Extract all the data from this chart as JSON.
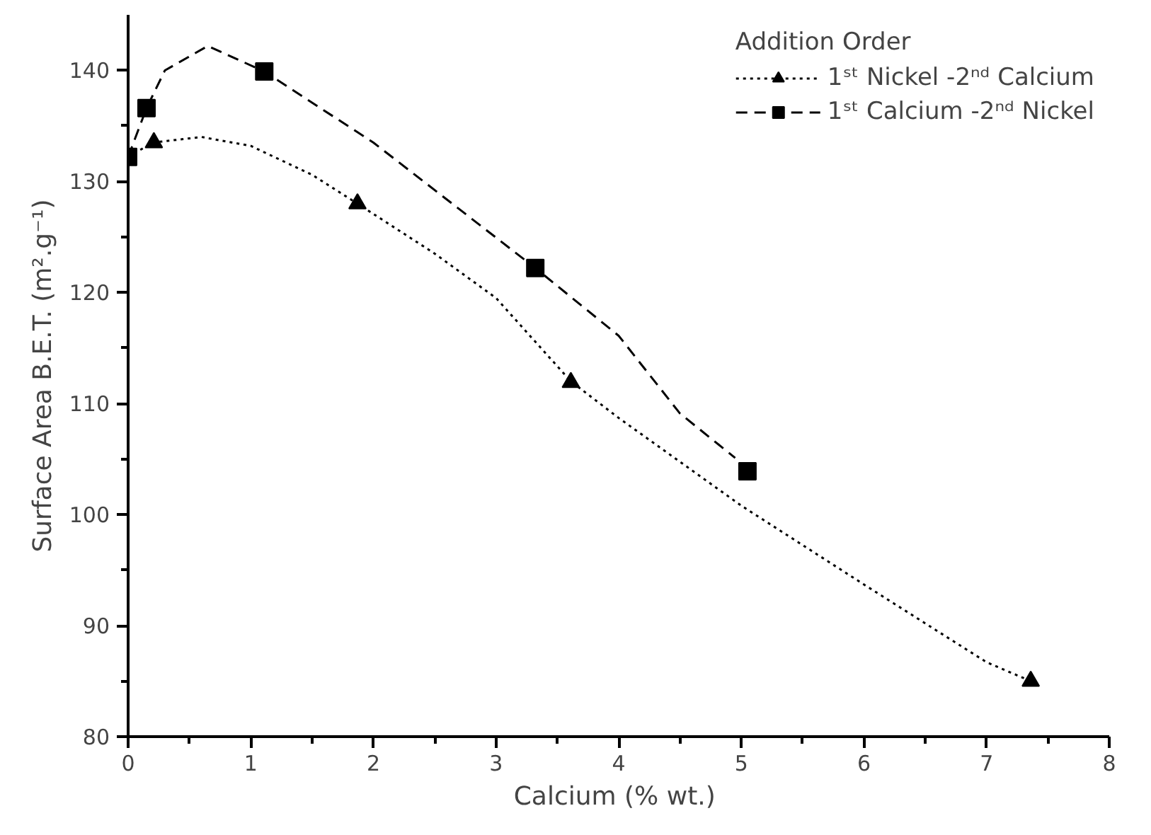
{
  "chart_data": {
    "type": "scatter",
    "xlabel": "Calcium  (% wt.)",
    "ylabel": "Surface Area B.E.T. (m².g⁻¹)",
    "legend_title": "Addition Order",
    "legend": "top right",
    "grid": false,
    "xlim": [
      0,
      8
    ],
    "xticks": [
      0,
      1,
      2,
      3,
      4,
      5,
      6,
      7,
      8
    ],
    "ylim": [
      80,
      145
    ],
    "yticks": [
      80,
      90,
      100,
      110,
      120,
      130,
      140
    ],
    "series": [
      {
        "name": "1ˢᵗ Nickel -2ⁿᵈ Calcium",
        "color": "#000000",
        "marker": "triangle",
        "x": [
          0.21,
          1.87,
          3.61,
          7.36
        ],
        "values": [
          133.5,
          128.0,
          111.9,
          85.0
        ]
      },
      {
        "name": "1ˢᵗ Calcium -2ⁿᵈ Nickel",
        "color": "#000000",
        "marker": "square",
        "x": [
          0,
          0.15,
          1.11,
          3.32,
          5.05
        ],
        "values": [
          132.2,
          136.6,
          139.9,
          122.2,
          103.9
        ]
      },
      {
        "type": "line",
        "color": "#000000",
        "line_style": "dotted",
        "marker": "none",
        "x": [
          0,
          0.2,
          0.6,
          1.0,
          1.5,
          1.87,
          2.5,
          3.0,
          3.61,
          4.0,
          5.0,
          6.0,
          7.0,
          7.36
        ],
        "values": [
          132.2,
          133.5,
          134.0,
          133.2,
          130.6,
          128.0,
          123.5,
          119.5,
          112.0,
          108.7,
          100.8,
          93.7,
          86.7,
          85.0
        ]
      },
      {
        "type": "line",
        "color": "#000000",
        "line_style": "dashed",
        "marker": "none",
        "x": [
          0,
          0.15,
          0.3,
          0.65,
          1.11,
          2.0,
          3.32,
          4.0,
          4.5,
          4.95
        ],
        "values": [
          132.2,
          136.6,
          140.0,
          142.2,
          139.9,
          133.5,
          122.2,
          116.1,
          109.1,
          105.1
        ]
      }
    ]
  }
}
